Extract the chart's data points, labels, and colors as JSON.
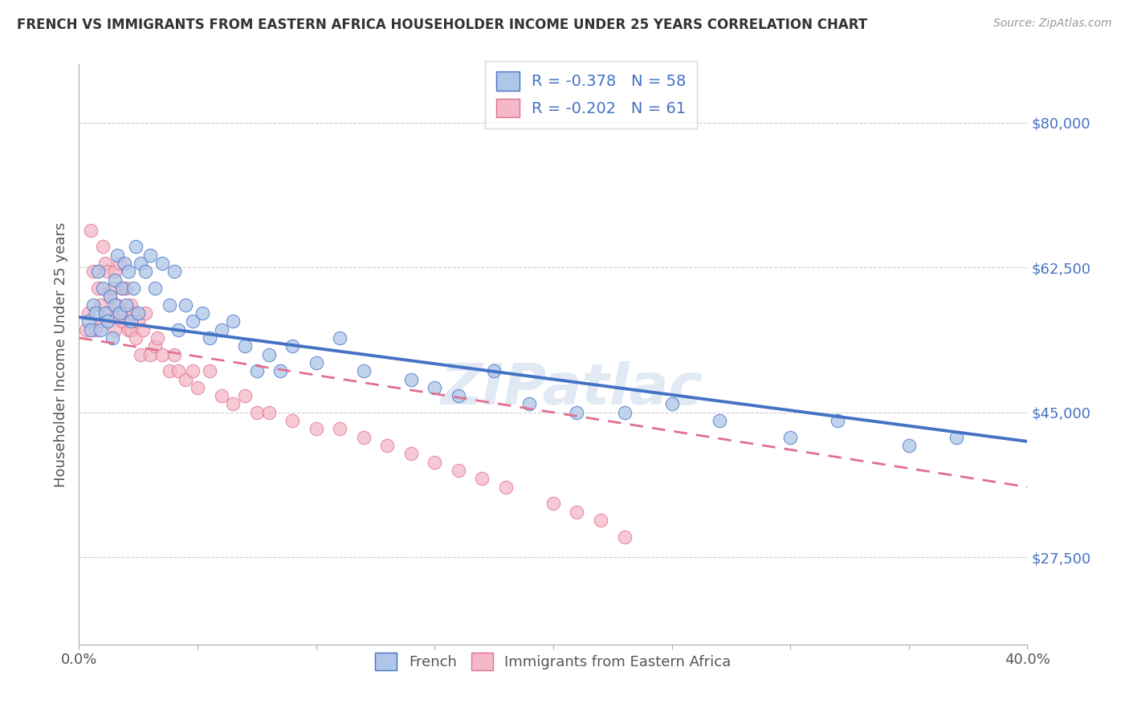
{
  "title": "FRENCH VS IMMIGRANTS FROM EASTERN AFRICA HOUSEHOLDER INCOME UNDER 25 YEARS CORRELATION CHART",
  "source": "Source: ZipAtlas.com",
  "ylabel": "Householder Income Under 25 years",
  "legend_label1": "French",
  "legend_label2": "Immigrants from Eastern Africa",
  "r1": -0.378,
  "n1": 58,
  "r2": -0.202,
  "n2": 61,
  "color1": "#aec6e8",
  "color2": "#f4b8c8",
  "line_color1": "#4472c4",
  "line_color2": "#e07090",
  "xmin": 0.0,
  "xmax": 0.4,
  "ymin": 17000,
  "ymax": 87000,
  "yticks": [
    27500,
    45000,
    62500,
    80000
  ],
  "ytick_labels": [
    "$27,500",
    "$45,000",
    "$62,500",
    "$80,000"
  ],
  "xtick_positions": [
    0.0,
    0.05,
    0.1,
    0.15,
    0.2,
    0.25,
    0.3,
    0.35,
    0.4
  ],
  "xtick_labels": [
    "0.0%",
    "",
    "",
    "",
    "",
    "",
    "",
    "",
    "40.0%"
  ],
  "watermark": "ZIPatlас",
  "french_x": [
    0.004,
    0.005,
    0.006,
    0.007,
    0.008,
    0.009,
    0.01,
    0.011,
    0.012,
    0.013,
    0.014,
    0.015,
    0.015,
    0.016,
    0.017,
    0.018,
    0.019,
    0.02,
    0.021,
    0.022,
    0.023,
    0.024,
    0.025,
    0.026,
    0.028,
    0.03,
    0.032,
    0.035,
    0.038,
    0.04,
    0.042,
    0.045,
    0.048,
    0.052,
    0.055,
    0.06,
    0.065,
    0.07,
    0.075,
    0.08,
    0.085,
    0.09,
    0.1,
    0.11,
    0.12,
    0.14,
    0.15,
    0.16,
    0.175,
    0.19,
    0.21,
    0.23,
    0.25,
    0.27,
    0.3,
    0.32,
    0.35,
    0.37
  ],
  "french_y": [
    56000,
    55000,
    58000,
    57000,
    62000,
    55000,
    60000,
    57000,
    56000,
    59000,
    54000,
    61000,
    58000,
    64000,
    57000,
    60000,
    63000,
    58000,
    62000,
    56000,
    60000,
    65000,
    57000,
    63000,
    62000,
    64000,
    60000,
    63000,
    58000,
    62000,
    55000,
    58000,
    56000,
    57000,
    54000,
    55000,
    56000,
    53000,
    50000,
    52000,
    50000,
    53000,
    51000,
    54000,
    50000,
    49000,
    48000,
    47000,
    50000,
    46000,
    45000,
    45000,
    46000,
    44000,
    42000,
    44000,
    41000,
    42000
  ],
  "imm_x": [
    0.003,
    0.004,
    0.005,
    0.006,
    0.007,
    0.008,
    0.009,
    0.01,
    0.01,
    0.011,
    0.012,
    0.013,
    0.013,
    0.014,
    0.015,
    0.015,
    0.016,
    0.017,
    0.018,
    0.018,
    0.019,
    0.02,
    0.021,
    0.022,
    0.022,
    0.023,
    0.024,
    0.025,
    0.026,
    0.027,
    0.028,
    0.03,
    0.032,
    0.033,
    0.035,
    0.038,
    0.04,
    0.042,
    0.045,
    0.048,
    0.05,
    0.055,
    0.06,
    0.065,
    0.07,
    0.075,
    0.08,
    0.09,
    0.1,
    0.11,
    0.12,
    0.13,
    0.14,
    0.15,
    0.16,
    0.17,
    0.18,
    0.2,
    0.21,
    0.22,
    0.23
  ],
  "imm_y": [
    55000,
    57000,
    67000,
    62000,
    55000,
    60000,
    58000,
    56000,
    65000,
    63000,
    62000,
    59000,
    57000,
    60000,
    55000,
    62000,
    58000,
    63000,
    56000,
    60000,
    57000,
    60000,
    55000,
    58000,
    55000,
    57000,
    54000,
    56000,
    52000,
    55000,
    57000,
    52000,
    53000,
    54000,
    52000,
    50000,
    52000,
    50000,
    49000,
    50000,
    48000,
    50000,
    47000,
    46000,
    47000,
    45000,
    45000,
    44000,
    43000,
    43000,
    42000,
    41000,
    40000,
    39000,
    38000,
    37000,
    36000,
    34000,
    33000,
    32000,
    30000
  ],
  "trend_blue_x0": 0.0,
  "trend_blue_y0": 56500,
  "trend_blue_x1": 0.4,
  "trend_blue_y1": 41500,
  "trend_pink_x0": 0.0,
  "trend_pink_y0": 54000,
  "trend_pink_x1": 0.4,
  "trend_pink_y1": 36000
}
